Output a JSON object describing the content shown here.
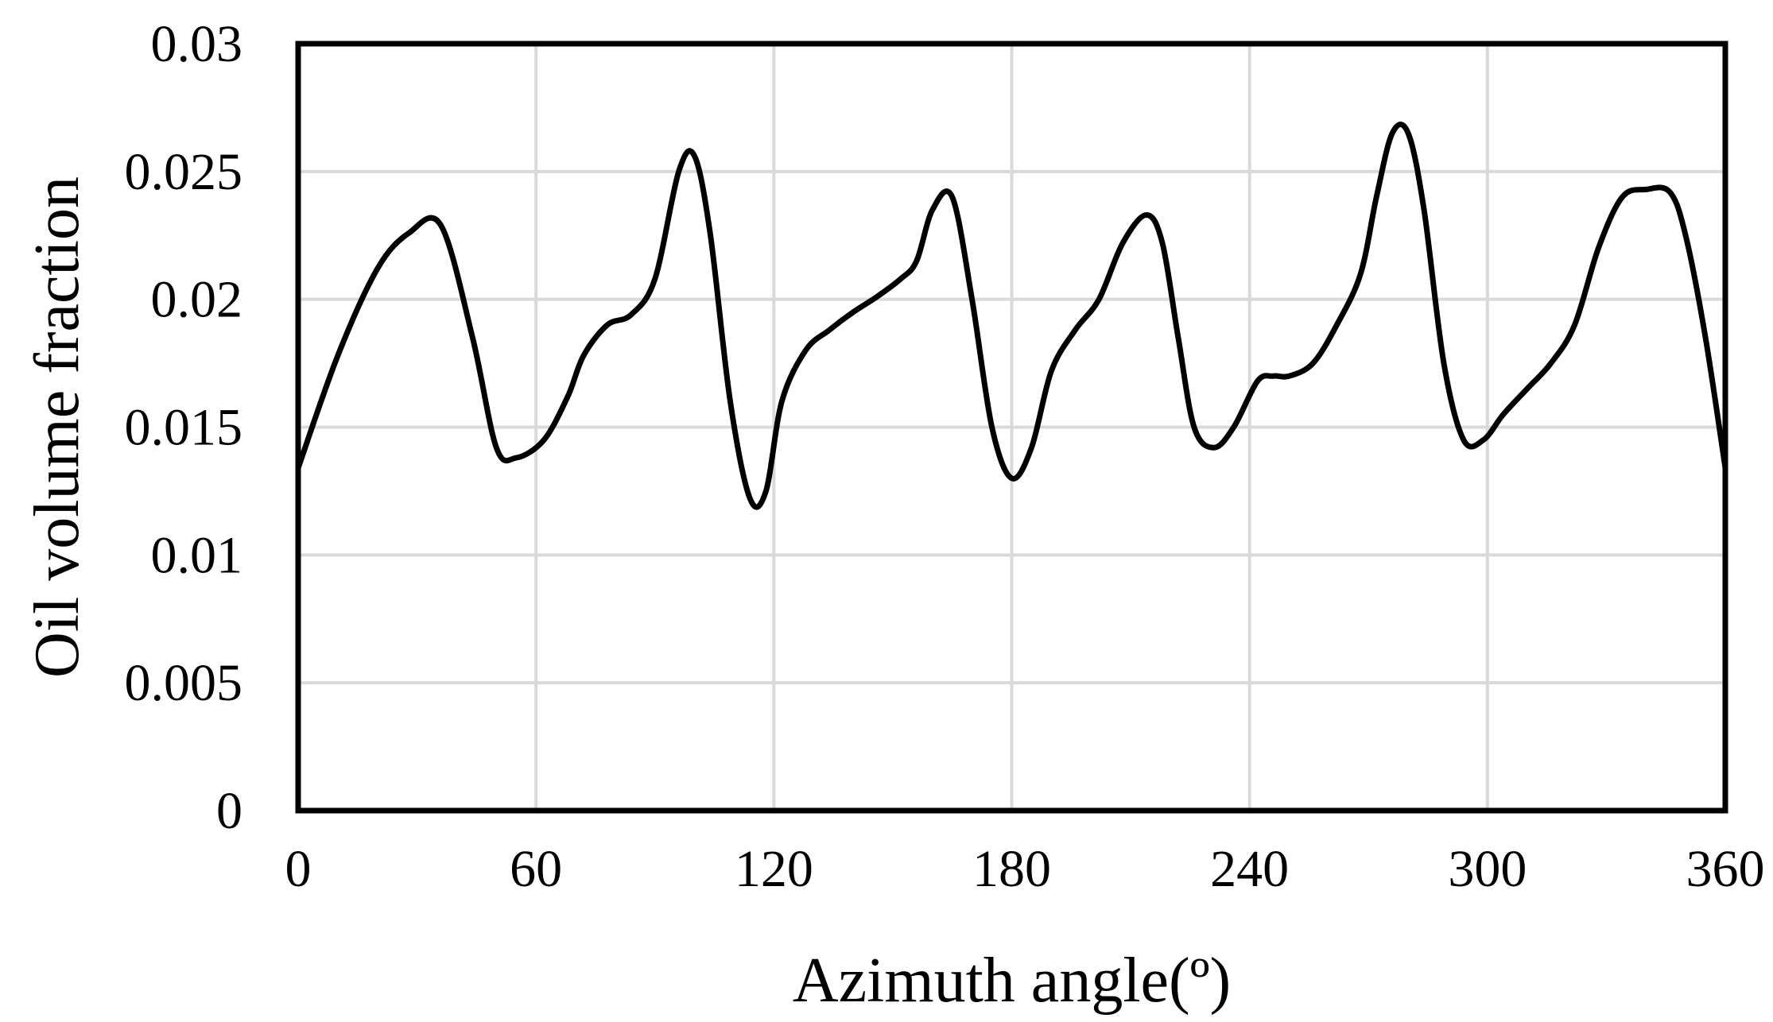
{
  "chart_data": {
    "type": "line",
    "xlabel": "Azimuth angle(º)",
    "ylabel": "Oil volume fraction",
    "xlim": [
      0,
      360
    ],
    "ylim": [
      0,
      0.03
    ],
    "xticks": [
      0,
      60,
      120,
      180,
      240,
      300,
      360
    ],
    "xtick_labels": [
      "0",
      "60",
      "120",
      "180",
      "240",
      "300",
      "360"
    ],
    "yticks": [
      0,
      0.005,
      0.01,
      0.015,
      0.02,
      0.025,
      0.03
    ],
    "ytick_labels": [
      "0",
      "0.005",
      "0.01",
      "0.015",
      "0.02",
      "0.025",
      "0.03"
    ],
    "grid": true,
    "legend": "none",
    "colors": {
      "line": "#000000",
      "grid": "#d9d9d9",
      "frame": "#000000"
    },
    "series": [
      {
        "x": [
          0,
          10,
          20,
          28,
          36,
          44,
          50,
          55,
          62,
          68,
          72,
          78,
          84,
          90,
          96,
          100,
          104,
          109,
          114,
          118,
          122,
          128,
          134,
          140,
          146,
          152,
          156,
          160,
          165,
          170,
          175,
          180,
          185,
          190,
          196,
          202,
          208,
          214,
          218,
          222,
          226,
          231,
          236,
          242,
          246,
          250,
          256,
          262,
          268,
          272,
          276,
          280,
          284,
          289,
          294,
          299,
          304,
          310,
          316,
          322,
          328,
          334,
          340,
          346,
          350,
          355,
          360
        ],
        "y": [
          0.0134,
          0.0178,
          0.0212,
          0.0226,
          0.0229,
          0.0185,
          0.0142,
          0.0138,
          0.0145,
          0.0162,
          0.0178,
          0.019,
          0.0194,
          0.0208,
          0.025,
          0.0256,
          0.0225,
          0.016,
          0.0122,
          0.0125,
          0.016,
          0.018,
          0.0188,
          0.0195,
          0.0201,
          0.0208,
          0.0215,
          0.0235,
          0.024,
          0.02,
          0.015,
          0.013,
          0.0142,
          0.0172,
          0.0188,
          0.02,
          0.0222,
          0.0233,
          0.0222,
          0.0185,
          0.015,
          0.0142,
          0.015,
          0.0168,
          0.017,
          0.017,
          0.0175,
          0.019,
          0.021,
          0.024,
          0.0265,
          0.0265,
          0.0235,
          0.0175,
          0.0145,
          0.0145,
          0.0155,
          0.0165,
          0.0175,
          0.019,
          0.022,
          0.024,
          0.0243,
          0.0242,
          0.0225,
          0.0185,
          0.0134
        ]
      }
    ]
  }
}
